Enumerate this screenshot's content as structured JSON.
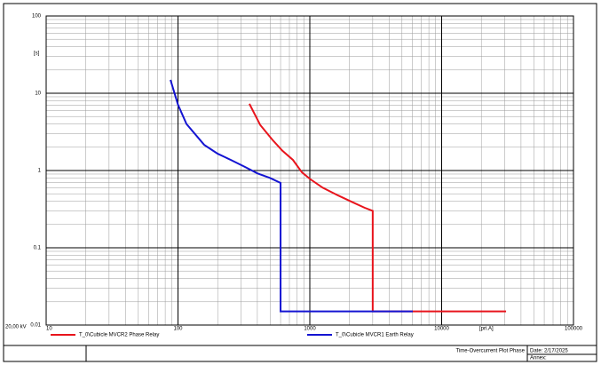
{
  "chart_data": {
    "type": "line",
    "xlabel": "[pri.A]",
    "ylabel": "[s]",
    "annotation": "20,00 kV",
    "xscale": "log",
    "yscale": "log",
    "xlim": [
      10,
      100000
    ],
    "ylim": [
      0.01,
      100
    ],
    "xticks": [
      10,
      100,
      1000,
      10000,
      100000
    ],
    "yticks": [
      0.01,
      0.1,
      1,
      10,
      100
    ],
    "grid": true,
    "series": [
      {
        "name": "T_0\\Cubicle MVCR2 Phase Relay",
        "color": "#e8141c",
        "x": [
          348,
          420,
          520,
          620,
          745,
          870,
          1000,
          1250,
          1620,
          2100,
          2600,
          3000,
          3000,
          30800
        ],
        "values": [
          7.3,
          3.9,
          2.5,
          1.8,
          1.37,
          0.95,
          0.78,
          0.6,
          0.48,
          0.39,
          0.33,
          0.3,
          0.015,
          0.015
        ]
      },
      {
        "name": "T_0\\Cubicle MVCR1 Earth Relay",
        "color": "#1414d2",
        "x": [
          87.7,
          100,
          116,
          158,
          200,
          252,
          320,
          400,
          500,
          600,
          600,
          6040
        ],
        "values": [
          14.9,
          7.1,
          4.0,
          2.15,
          1.65,
          1.37,
          1.12,
          0.92,
          0.8,
          0.69,
          0.015,
          0.015
        ]
      }
    ],
    "footer": {
      "plot_title": "Time-Overcurrent Plot Phase",
      "date": "Date: 2/17/2025",
      "annex": "Annex:"
    }
  }
}
